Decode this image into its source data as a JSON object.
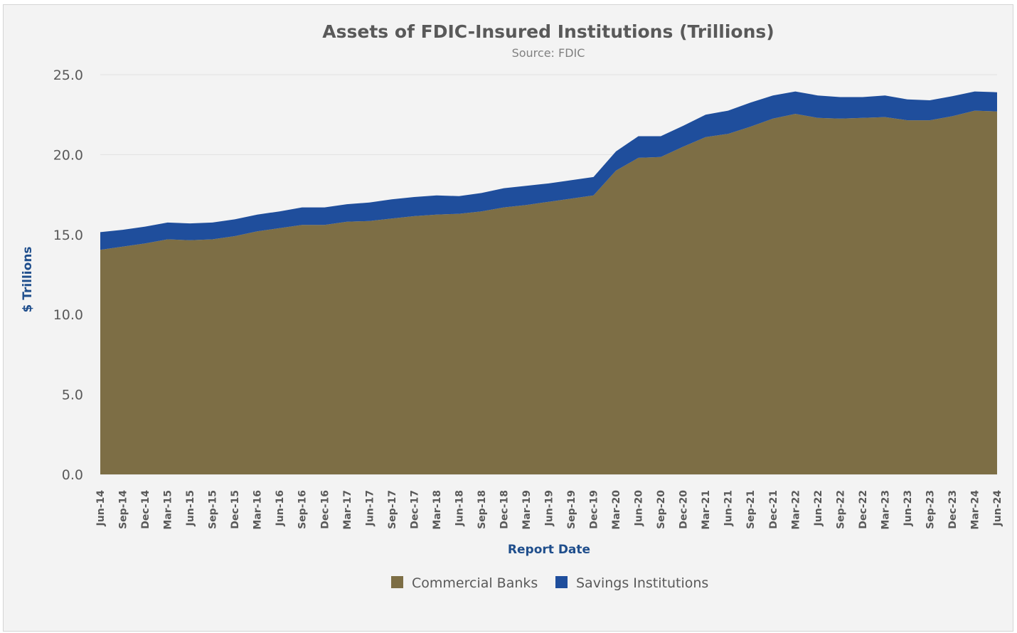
{
  "chart_data": {
    "type": "area",
    "stacked": true,
    "title": "Assets of FDIC-Insured Institutions (Trillions)",
    "subtitle": "Source: FDIC",
    "xlabel": "Report Date",
    "ylabel": "$ Trillions",
    "ylim": [
      0,
      25
    ],
    "yticks": [
      "0.0",
      "5.0",
      "10.0",
      "15.0",
      "20.0",
      "25.0"
    ],
    "grid": true,
    "legend_position": "bottom",
    "categories": [
      "Jun-14",
      "Sep-14",
      "Dec-14",
      "Mar-15",
      "Jun-15",
      "Sep-15",
      "Dec-15",
      "Mar-16",
      "Jun-16",
      "Sep-16",
      "Dec-16",
      "Mar-17",
      "Jun-17",
      "Sep-17",
      "Dec-17",
      "Mar-18",
      "Jun-18",
      "Sep-18",
      "Dec-18",
      "Mar-19",
      "Jun-19",
      "Sep-19",
      "Dec-19",
      "Mar-20",
      "Jun-20",
      "Sep-20",
      "Dec-20",
      "Mar-21",
      "Jun-21",
      "Sep-21",
      "Dec-21",
      "Mar-22",
      "Jun-22",
      "Sep-22",
      "Dec-22",
      "Mar-23",
      "Jun-23",
      "Sep-23",
      "Dec-23",
      "Mar-24",
      "Jun-24"
    ],
    "series": [
      {
        "name": "Commercial Banks",
        "color": "#7d6e45",
        "values": [
          14.05,
          14.25,
          14.45,
          14.7,
          14.65,
          14.7,
          14.9,
          15.2,
          15.4,
          15.6,
          15.6,
          15.8,
          15.85,
          16.0,
          16.15,
          16.25,
          16.3,
          16.45,
          16.7,
          16.85,
          17.05,
          17.25,
          17.45,
          19.0,
          19.8,
          19.85,
          20.5,
          21.1,
          21.3,
          21.75,
          22.25,
          22.55,
          22.3,
          22.25,
          22.3,
          22.35,
          22.15,
          22.15,
          22.4,
          22.75,
          22.7
        ]
      },
      {
        "name": "Savings Institutions",
        "color": "#1f4e9c",
        "values": [
          1.1,
          1.05,
          1.05,
          1.05,
          1.05,
          1.05,
          1.05,
          1.05,
          1.05,
          1.1,
          1.1,
          1.1,
          1.15,
          1.2,
          1.2,
          1.2,
          1.1,
          1.15,
          1.2,
          1.2,
          1.15,
          1.15,
          1.15,
          1.2,
          1.35,
          1.3,
          1.3,
          1.4,
          1.45,
          1.5,
          1.45,
          1.4,
          1.4,
          1.35,
          1.3,
          1.35,
          1.3,
          1.25,
          1.25,
          1.2,
          1.2
        ]
      }
    ]
  }
}
